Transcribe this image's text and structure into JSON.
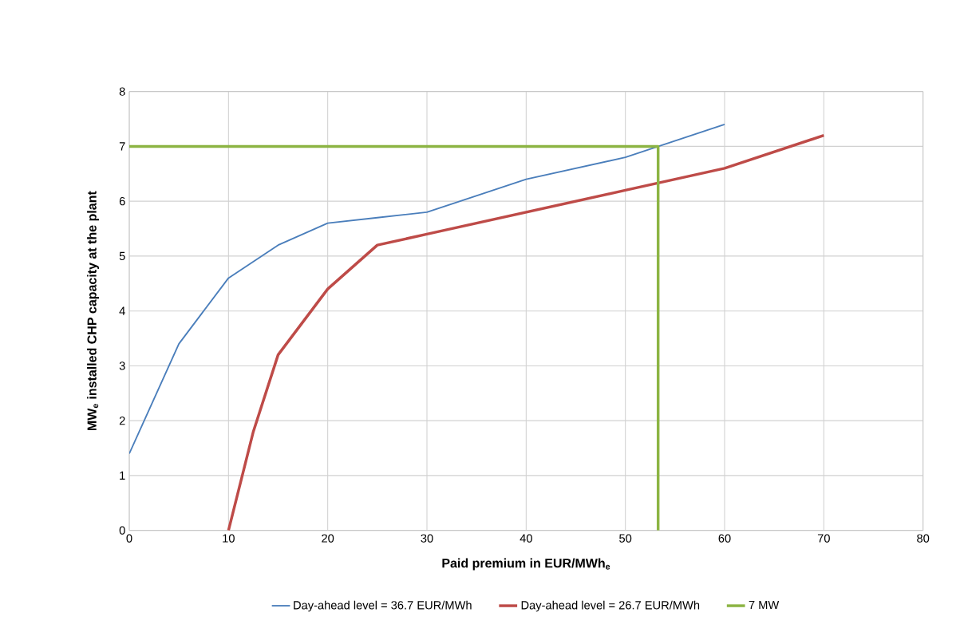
{
  "chart_data": {
    "type": "line",
    "xlabel": "Paid premium in EUR/MWh$_{e}$",
    "ylabel": "MW$_{e}$ installed CHP capacity at the plant",
    "xlim": [
      0,
      80
    ],
    "ylim": [
      0,
      8
    ],
    "xticks": [
      0,
      10,
      20,
      30,
      40,
      50,
      60,
      70,
      80
    ],
    "yticks": [
      0,
      1,
      2,
      3,
      4,
      5,
      6,
      7,
      8
    ],
    "grid": true,
    "legend": "bottom",
    "marker": "none",
    "line_style": "solid",
    "series": [
      {
        "name": "Day-ahead level = 36.7 EUR/MWh",
        "color": "#4a7ebb",
        "x": [
          0,
          5,
          10,
          15,
          20,
          25,
          30,
          40,
          50,
          60
        ],
        "values": [
          1.4,
          3.4,
          4.6,
          5.2,
          5.6,
          5.7,
          5.8,
          6.4,
          6.8,
          7.4
        ]
      },
      {
        "name": "Day-ahead level = 26.7 EUR/MWh",
        "color": "#be4b48",
        "x": [
          10,
          12.5,
          15,
          20,
          25,
          30,
          40,
          50,
          60,
          70
        ],
        "values": [
          0,
          1.8,
          3.2,
          4.4,
          5.2,
          5.4,
          5.8,
          6.2,
          6.6,
          7.2
        ]
      },
      {
        "name": "7 MW",
        "color": "#8cb443",
        "x": [
          0,
          53.3,
          53.3
        ],
        "values": [
          7,
          7,
          0
        ]
      }
    ]
  }
}
